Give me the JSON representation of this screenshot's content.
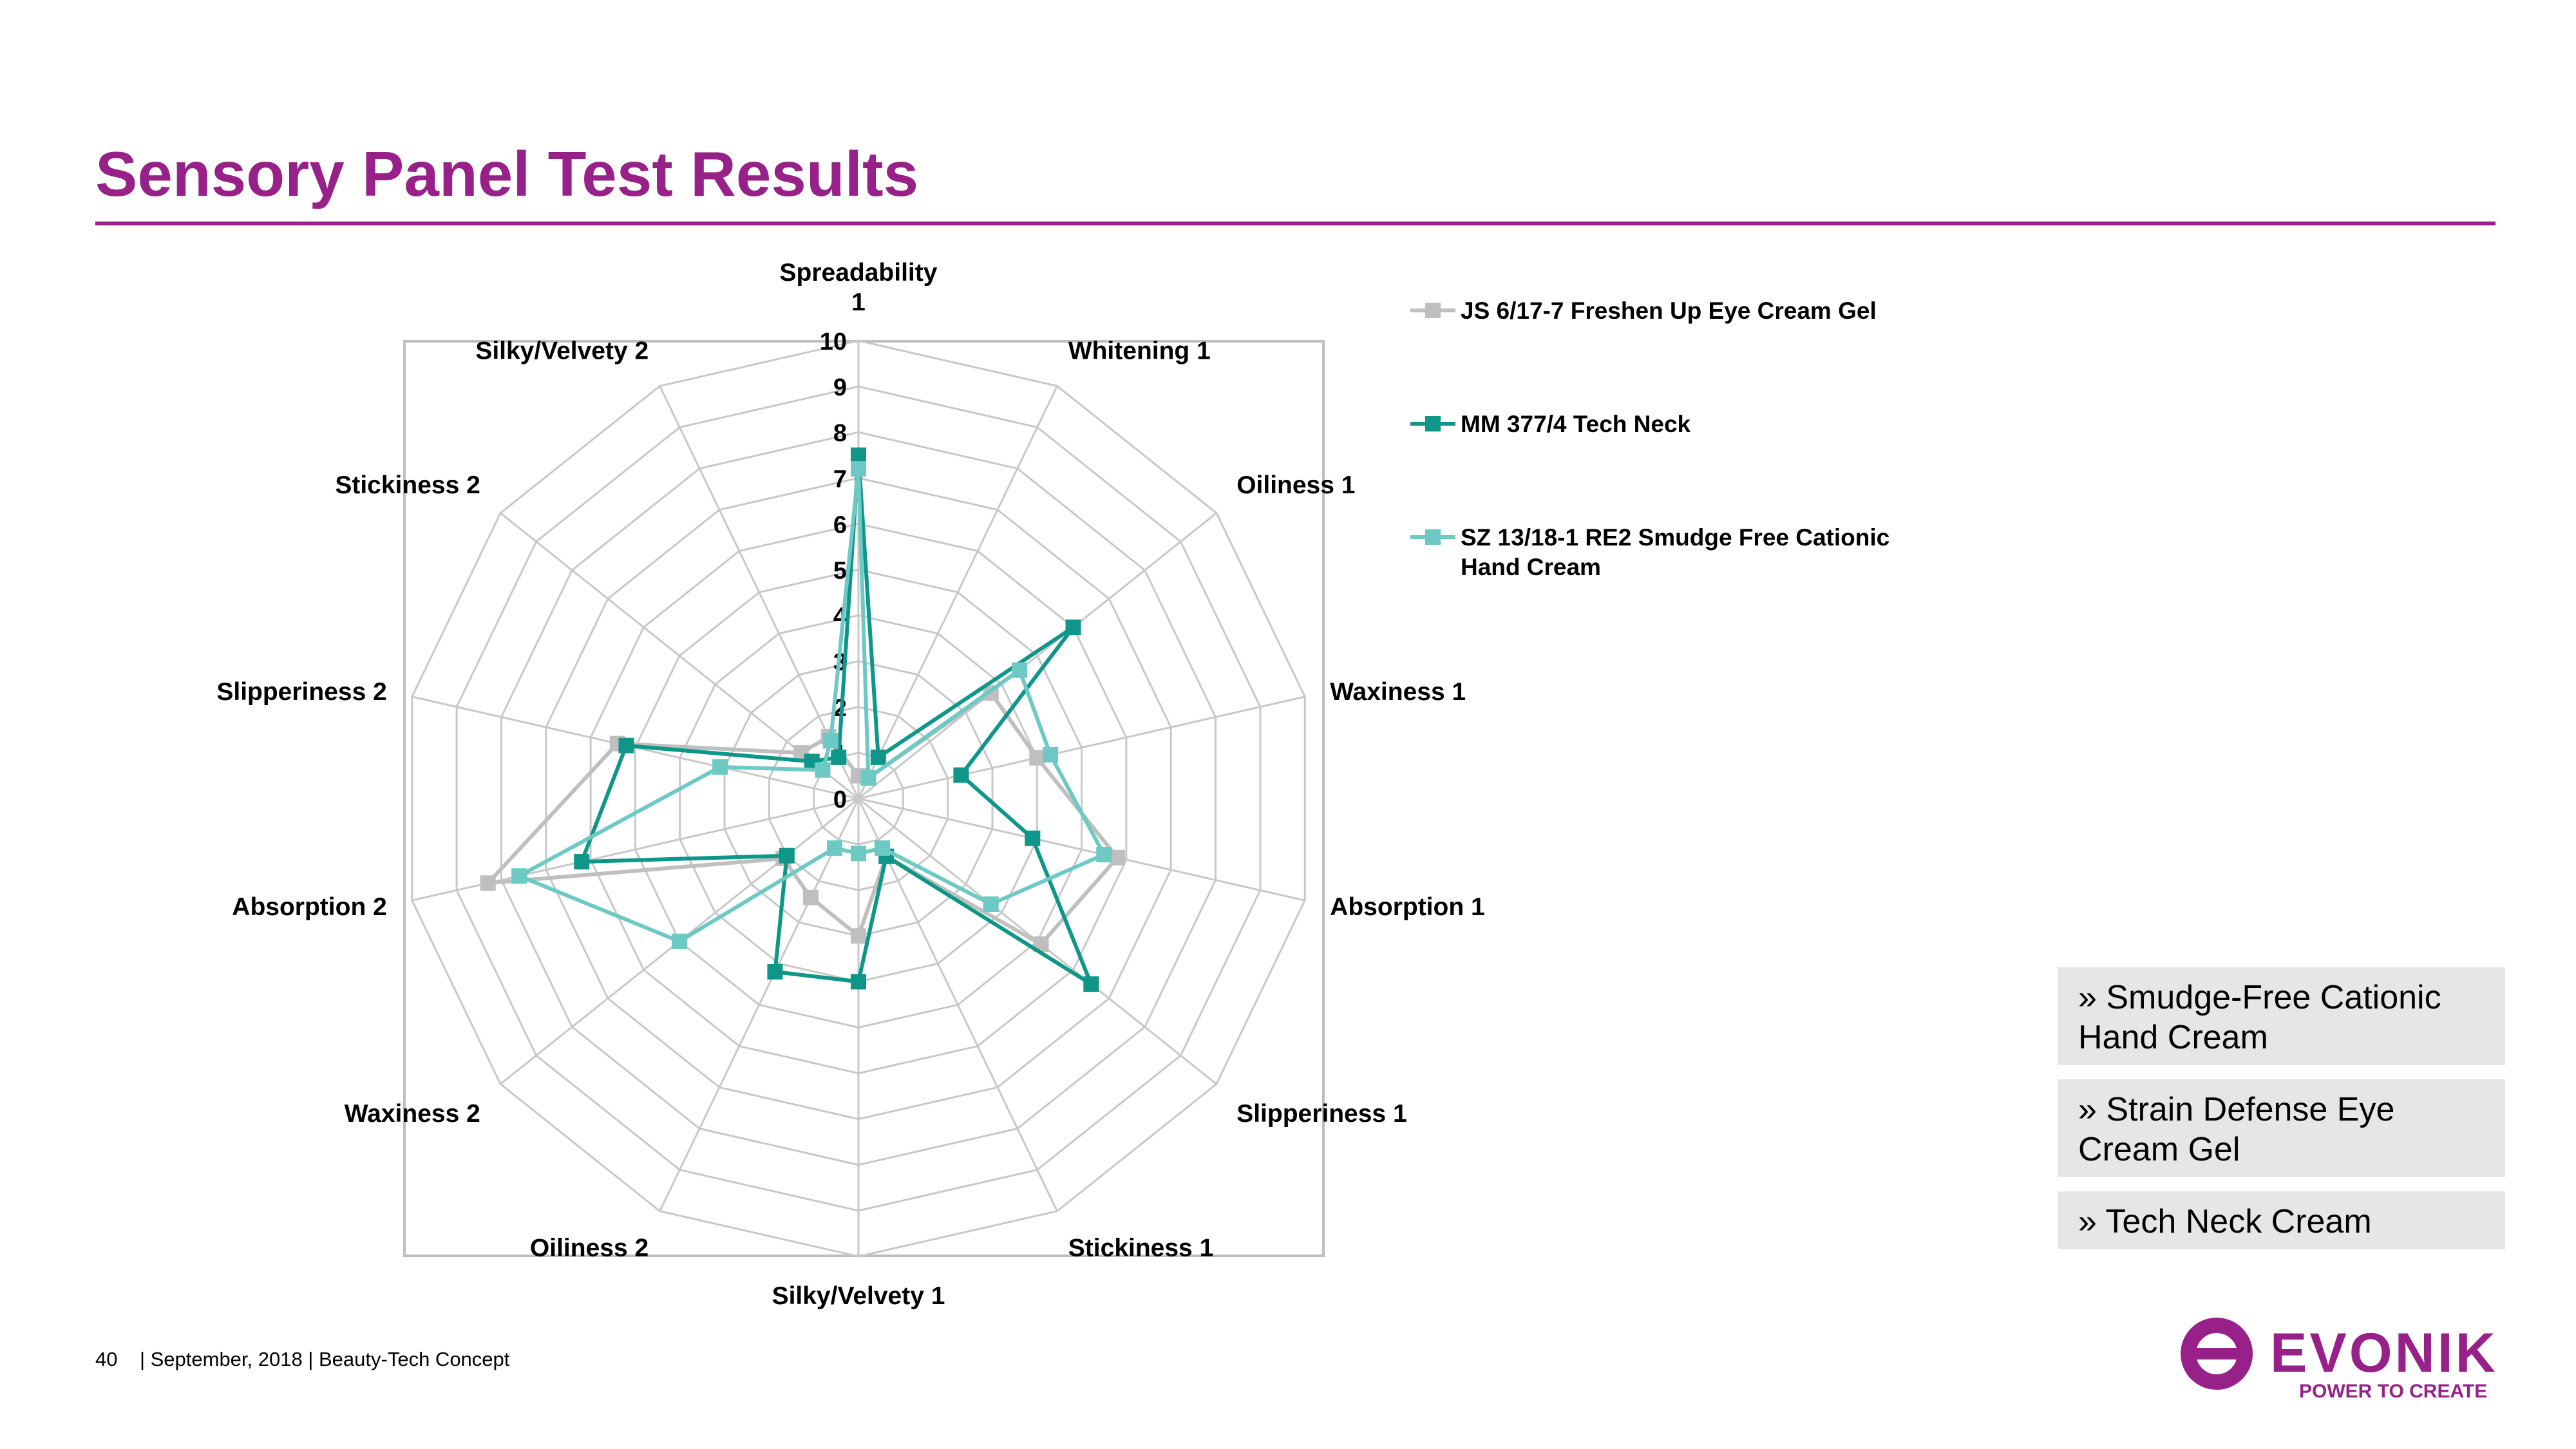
{
  "slide": {
    "title": "Sensory Panel Test Results",
    "footer_page": "40",
    "footer_text": "| September, 2018 | Beauty-Tech Concept"
  },
  "callouts": [
    "» Smudge-Free Cationic Hand Cream",
    "» Strain Defense Eye Cream Gel",
    "» Tech Neck Cream"
  ],
  "logo": {
    "name": "EVONIK",
    "tagline": "POWER TO CREATE",
    "color": "#982189"
  },
  "chart_data": {
    "type": "radar",
    "axes": [
      "Spreadability 1",
      "Whitening 1",
      "Oiliness 1",
      "Waxiness 1",
      "Absorption 1",
      "Slipperiness 1",
      "Stickiness  1",
      "Silky/Velvety 1",
      "Oiliness 2",
      "Waxiness 2",
      "Absorption 2",
      "Slipperiness 2",
      "Stickiness  2",
      "Silky/Velvety 2"
    ],
    "rlim": [
      0,
      10
    ],
    "ticks": [
      0,
      1,
      2,
      3,
      4,
      5,
      6,
      7,
      8,
      9,
      10
    ],
    "grid": true,
    "legend_position": "right",
    "series": [
      {
        "name": "JS 6/17-7 Freshen Up Eye Cream Gel",
        "color": "#bfbfbf",
        "values": [
          0.5,
          0.5,
          3.7,
          4.0,
          5.8,
          5.1,
          1.4,
          3.0,
          2.4,
          2.1,
          8.3,
          5.4,
          1.6,
          1.5
        ]
      },
      {
        "name": "MM 377/4 Tech Neck",
        "color": "#0e9688",
        "values": [
          7.5,
          1.0,
          6.0,
          2.3,
          3.9,
          6.5,
          1.4,
          4.0,
          4.2,
          2.0,
          6.2,
          5.2,
          1.3,
          1.0
        ]
      },
      {
        "name": "SZ 13/18-1 RE2 Smudge Free Cationic Hand Cream",
        "color": "#6cc9c4",
        "values": [
          7.2,
          0.5,
          4.5,
          4.3,
          5.5,
          3.7,
          1.2,
          1.2,
          1.2,
          5.0,
          7.6,
          3.1,
          1.0,
          1.4
        ]
      }
    ]
  }
}
